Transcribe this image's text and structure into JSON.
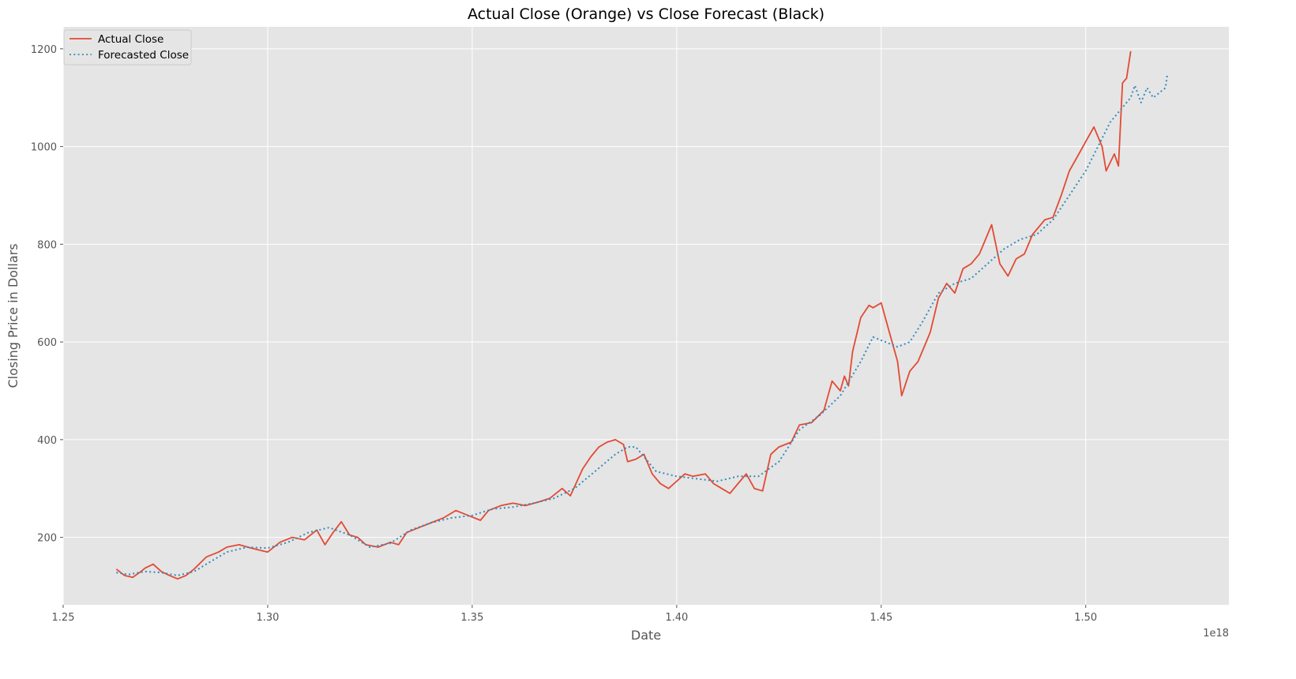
{
  "chart_data": {
    "type": "line",
    "title": "Actual Close (Orange) vs Close Forecast (Black)",
    "xlabel": "Date",
    "ylabel": "Closing Price in Dollars",
    "x_offset_label": "1e18",
    "xlim": [
      1.25,
      1.535
    ],
    "ylim": [
      62,
      1245
    ],
    "xticks": [
      1.25,
      1.3,
      1.35,
      1.4,
      1.45,
      1.5
    ],
    "xtick_labels": [
      "1.25",
      "1.30",
      "1.35",
      "1.40",
      "1.45",
      "1.50"
    ],
    "yticks": [
      200,
      400,
      600,
      800,
      1000,
      1200
    ],
    "ytick_labels": [
      "200",
      "400",
      "600",
      "800",
      "1000",
      "1200"
    ],
    "grid": true,
    "legend_position": "top-left",
    "series": [
      {
        "name": "Actual Close",
        "color": "#e24a33",
        "style": "solid",
        "x": [
          1.263,
          1.265,
          1.267,
          1.269,
          1.27,
          1.272,
          1.274,
          1.276,
          1.278,
          1.28,
          1.282,
          1.285,
          1.288,
          1.29,
          1.293,
          1.296,
          1.3,
          1.303,
          1.306,
          1.309,
          1.312,
          1.314,
          1.316,
          1.318,
          1.32,
          1.322,
          1.324,
          1.327,
          1.33,
          1.332,
          1.334,
          1.337,
          1.34,
          1.343,
          1.346,
          1.349,
          1.352,
          1.354,
          1.357,
          1.36,
          1.363,
          1.366,
          1.369,
          1.372,
          1.374,
          1.377,
          1.379,
          1.381,
          1.383,
          1.385,
          1.387,
          1.388,
          1.39,
          1.392,
          1.394,
          1.396,
          1.398,
          1.4,
          1.402,
          1.404,
          1.407,
          1.409,
          1.411,
          1.413,
          1.415,
          1.417,
          1.419,
          1.421,
          1.423,
          1.425,
          1.428,
          1.43,
          1.433,
          1.436,
          1.438,
          1.44,
          1.441,
          1.442,
          1.443,
          1.445,
          1.447,
          1.448,
          1.45,
          1.452,
          1.454,
          1.455,
          1.457,
          1.459,
          1.461,
          1.462,
          1.464,
          1.466,
          1.468,
          1.47,
          1.472,
          1.474,
          1.475,
          1.477,
          1.479,
          1.481,
          1.483,
          1.485,
          1.487,
          1.49,
          1.492,
          1.494,
          1.496,
          1.498,
          1.5,
          1.502,
          1.504,
          1.505,
          1.507,
          1.508,
          1.509,
          1.51,
          1.511
        ],
        "y": [
          135,
          122,
          118,
          130,
          137,
          145,
          130,
          122,
          115,
          122,
          135,
          160,
          170,
          180,
          185,
          178,
          170,
          190,
          200,
          195,
          215,
          185,
          210,
          232,
          205,
          200,
          185,
          180,
          190,
          185,
          210,
          220,
          230,
          240,
          255,
          245,
          235,
          255,
          265,
          270,
          265,
          272,
          280,
          300,
          285,
          340,
          365,
          385,
          395,
          400,
          390,
          355,
          360,
          370,
          330,
          310,
          300,
          315,
          330,
          325,
          330,
          310,
          300,
          290,
          310,
          330,
          300,
          295,
          370,
          385,
          395,
          430,
          435,
          460,
          520,
          500,
          530,
          510,
          580,
          650,
          675,
          670,
          680,
          620,
          560,
          490,
          540,
          560,
          600,
          620,
          690,
          720,
          700,
          750,
          760,
          780,
          800,
          840,
          760,
          735,
          770,
          780,
          820,
          850,
          855,
          900,
          950,
          980,
          1010,
          1040,
          1000,
          950,
          985,
          960,
          1130,
          1140,
          1195
        ]
      },
      {
        "name": "Forecasted Close",
        "color": "#348abd",
        "style": "dotted",
        "x": [
          1.263,
          1.266,
          1.27,
          1.274,
          1.278,
          1.282,
          1.286,
          1.29,
          1.295,
          1.3,
          1.305,
          1.31,
          1.315,
          1.32,
          1.325,
          1.33,
          1.335,
          1.34,
          1.345,
          1.35,
          1.355,
          1.36,
          1.365,
          1.37,
          1.375,
          1.38,
          1.385,
          1.388,
          1.39,
          1.395,
          1.4,
          1.405,
          1.41,
          1.415,
          1.42,
          1.425,
          1.43,
          1.435,
          1.44,
          1.445,
          1.448,
          1.451,
          1.454,
          1.457,
          1.46,
          1.464,
          1.468,
          1.472,
          1.476,
          1.48,
          1.484,
          1.488,
          1.492,
          1.496,
          1.5,
          1.503,
          1.506,
          1.509,
          1.511,
          1.512,
          1.5135,
          1.515,
          1.5165,
          1.518,
          1.5195,
          1.52
        ],
        "y": [
          128,
          124,
          130,
          128,
          122,
          130,
          150,
          170,
          180,
          178,
          190,
          210,
          220,
          205,
          180,
          188,
          215,
          230,
          240,
          245,
          258,
          262,
          270,
          280,
          300,
          335,
          370,
          385,
          385,
          335,
          325,
          320,
          315,
          325,
          325,
          355,
          420,
          450,
          490,
          560,
          610,
          600,
          590,
          600,
          640,
          700,
          720,
          730,
          760,
          790,
          810,
          820,
          850,
          900,
          950,
          1000,
          1050,
          1080,
          1100,
          1125,
          1090,
          1120,
          1100,
          1110,
          1120,
          1150
        ]
      }
    ]
  }
}
